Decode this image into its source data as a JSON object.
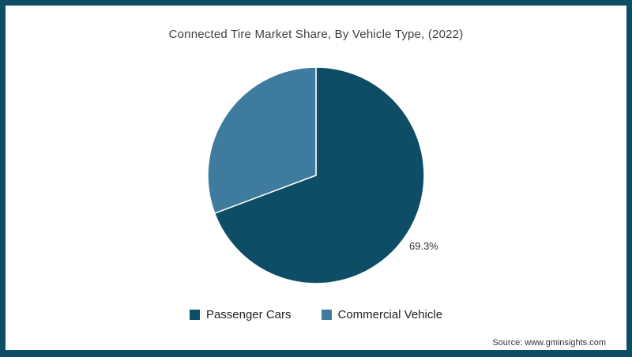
{
  "frame_color": "#0d4d66",
  "title": "Connected Tire Market Share, By Vehicle Type, (2022)",
  "source": "Source: www.gminsights.com",
  "chart_data": {
    "type": "pie",
    "title": "Connected Tire Market Share, By Vehicle Type, (2022)",
    "categories": [
      "Passenger Cars",
      "Commercial Vehicle"
    ],
    "values": [
      69.3,
      30.7
    ],
    "colors": [
      "#0d4d66",
      "#3e7b9e"
    ],
    "data_labels": [
      "69.3%",
      ""
    ],
    "start_angle_deg": 0,
    "direction": "clockwise",
    "legend_position": "bottom"
  },
  "legend": {
    "items": [
      {
        "label": "Passenger Cars",
        "color": "#0d4d66"
      },
      {
        "label": "Commercial Vehicle",
        "color": "#3e7b9e"
      }
    ]
  },
  "labels": {
    "passenger_cars_pct": "69.3%"
  }
}
